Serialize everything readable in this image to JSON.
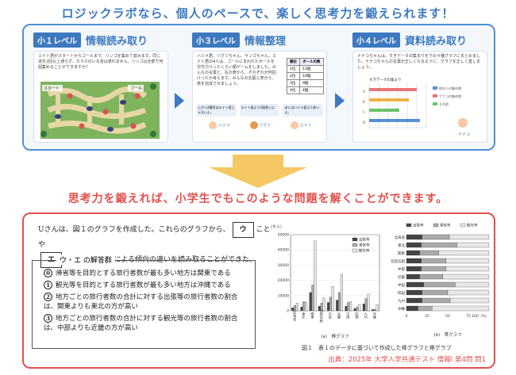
{
  "headline_top": "ロジックラボなら、個人のペースで、楽しく思考力を鍛えられます！",
  "headline_mid": "思考力を鍛えれば、小学生でもこのような問題を解くことができます。",
  "colors": {
    "blue": "#3d79c0",
    "red": "#e2504c",
    "arrow": "#f5c863"
  },
  "levels": [
    {
      "badge": "小１レベル",
      "title": "情報読み取り",
      "text": "エイト君がスタートからゴールまで、リンゴを集めて進みます。同じ道を2回以上通らず、カラスのいる道は通れません。リンゴは全部で何個集めることができますか？",
      "start": "スタート",
      "goal": "ゴール"
    },
    {
      "badge": "小３レベル",
      "title": "情報整理",
      "text": "ハジメ君、ツグミちゃん、サンゴちゃん、エイト君の4人は、ゴールにまわれたボールを交代でけったくらい順ゲームをしました。みんなの言葉と、右の表から、それぞれが何回けったか考えます。みんなの言葉と表から、表を完成させましょう。",
      "table_header": [
        "順位",
        "ボールの数"
      ],
      "table_rows": [
        [
          "1位",
          "13個"
        ],
        [
          "2位",
          "10個"
        ],
        [
          "3位",
          "9個"
        ],
        [
          "4位",
          "4個"
        ]
      ],
      "bubbles": [
        "上から2番目はエイト君じゃないよ。",
        "エイト君より1個多いよ",
        "ぼくはハジメ君より多いよ。"
      ],
      "names": [
        "ハジメ",
        "ツグミ",
        "エイト"
      ]
    },
    {
      "badge": "小４レベル",
      "title": "資料読み取り",
      "text": "ナナコちゃんは、すきデータの集まりを下の４種グラフにまとめました。ナナコちゃんの言葉が正しくなるように、グラフを正しく直しましょう。",
      "chart_title": "すきデータの集まり",
      "rows": [
        "A",
        "B",
        "C",
        "D"
      ],
      "legend": [
        "他の人の集め物",
        "ナナコの集め物",
        "その他"
      ],
      "name": "ナナコ"
    }
  ],
  "question": {
    "line1_a": "Uさんは、図１のグラフを作成した。これらのグラフから、",
    "box_u": "ウ",
    "line1_b": "ことや",
    "box_e": "エ",
    "line2": "ことなど、地方による傾向の違いを読み取ることができた。",
    "ans_title": "ウ・エ の解答群",
    "options": [
      {
        "num": "0",
        "text": "帰省等を目的とする旅行者数が最も多い地方は関東である"
      },
      {
        "num": "1",
        "text": "観光等を目的とする旅行者数が最も多い地方は沖縄である"
      },
      {
        "num": "2",
        "text": "地方ごとの旅行者数の合計に対する出張等の旅行者数の割合は、関東よりも東北の方が高い"
      },
      {
        "num": "3",
        "text": "地方ごとの旅行者数の合計に対する観光等の旅行者数の割合は、中部よりも近畿の方が高い"
      }
    ]
  },
  "chart_data": [
    {
      "type": "bar",
      "unit": "（千人）",
      "caption": "(a)　棒グラフ",
      "categories": [
        "北海道",
        "東北",
        "関東",
        "北陸信越",
        "中部",
        "近畿",
        "中国",
        "四国",
        "九州",
        "沖縄"
      ],
      "ylim": [
        0,
        50000
      ],
      "yticks": [
        "50000",
        "40000",
        "30000",
        "20000",
        "10000",
        "0"
      ],
      "series": [
        {
          "name": "出張等",
          "color": "#444444",
          "values": [
            2000,
            2500,
            12000,
            3000,
            5500,
            7000,
            3000,
            1500,
            4500,
            800
          ]
        },
        {
          "name": "帰省等",
          "color": "#aaaaaa",
          "values": [
            3500,
            6000,
            17000,
            5000,
            9000,
            12000,
            5500,
            2500,
            8000,
            1000
          ]
        },
        {
          "name": "観光等",
          "color": "#e8e8e8",
          "values": [
            5000,
            5500,
            46000,
            8500,
            16000,
            24000,
            6000,
            4000,
            11000,
            4000
          ]
        }
      ]
    },
    {
      "type": "bar",
      "caption": "(b)　帯グラフ",
      "categories": [
        "北海道",
        "東北",
        "関東",
        "北陸信越",
        "中部",
        "近畿",
        "中国",
        "四国",
        "九州",
        "沖縄"
      ],
      "xticks": [
        "0",
        "25",
        "50",
        "75",
        "100（%）"
      ],
      "series": [
        {
          "name": "出張等",
          "color": "#444444",
          "values": [
            19,
            18,
            16,
            18,
            18,
            16,
            21,
            19,
            19,
            14
          ]
        },
        {
          "name": "帰省等",
          "color": "#aaaaaa",
          "values": [
            33,
            43,
            23,
            30,
            30,
            28,
            38,
            31,
            34,
            17
          ]
        },
        {
          "name": "観光等",
          "color": "#e8e8e8",
          "values": [
            48,
            39,
            61,
            52,
            52,
            56,
            41,
            50,
            47,
            69
          ]
        }
      ]
    }
  ],
  "figure_caption": "図１　表１のデータに基づいて作成した棒グラフと帯グラフ",
  "source": "出典：2025年 大学入学共通テスト 情報Ⅰ 第4問 問1"
}
